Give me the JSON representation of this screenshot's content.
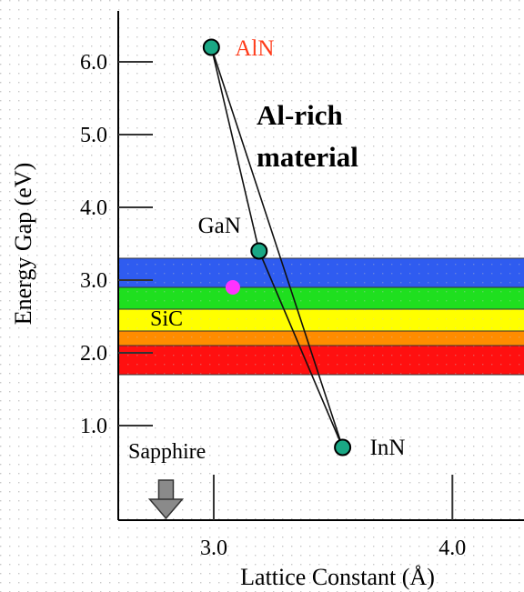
{
  "chart_data": {
    "type": "scatter",
    "title": "",
    "xlabel": "Lattice Constant (Å)",
    "ylabel": "Energy Gap (eV)",
    "xlim": [
      2.6,
      4.3
    ],
    "ylim": [
      -0.3,
      6.7
    ],
    "x_ticks": [
      {
        "value": 3.0,
        "label": "3.0"
      },
      {
        "value": 4.0,
        "label": "4.0"
      }
    ],
    "y_ticks": [
      {
        "value": 1.0,
        "label": "1.0"
      },
      {
        "value": 2.0,
        "label": "2.0"
      },
      {
        "value": 3.0,
        "label": "3.0"
      },
      {
        "value": 4.0,
        "label": "4.0"
      },
      {
        "value": 5.0,
        "label": "5.0"
      },
      {
        "value": 6.0,
        "label": "6.0"
      }
    ],
    "grid": "dotted",
    "points": [
      {
        "name": "AlN",
        "label": "AlN",
        "x": 2.99,
        "y": 6.2,
        "label_color": "#ff3b1a"
      },
      {
        "name": "GaN",
        "label": "GaN",
        "x": 3.19,
        "y": 3.4,
        "label_color": "#000000"
      },
      {
        "name": "InN",
        "label": "InN",
        "x": 3.54,
        "y": 0.7,
        "label_color": "#000000"
      }
    ],
    "edges": [
      [
        "AlN",
        "GaN"
      ],
      [
        "GaN",
        "InN"
      ],
      [
        "AlN",
        "InN"
      ]
    ],
    "marker_point": {
      "name": "SiC",
      "x": 3.08,
      "y": 2.9,
      "color": "#ff33ff"
    },
    "bands": [
      {
        "from": 2.9,
        "to": 3.3,
        "color": "#2f5cf0"
      },
      {
        "from": 2.6,
        "to": 2.9,
        "color": "#1fdf1f"
      },
      {
        "from": 2.3,
        "to": 2.6,
        "color": "#ffff00"
      },
      {
        "from": 2.1,
        "to": 2.3,
        "color": "#ff8c00"
      },
      {
        "from": 1.7,
        "to": 2.1,
        "color": "#ff1010"
      }
    ],
    "band_xlim": [
      2.6,
      4.3
    ],
    "annotations": {
      "region": "Al-rich\nmaterial",
      "sic": "SiC",
      "sapphire": "Sapphire"
    },
    "arrow": {
      "x": 2.8,
      "direction": "down"
    }
  }
}
